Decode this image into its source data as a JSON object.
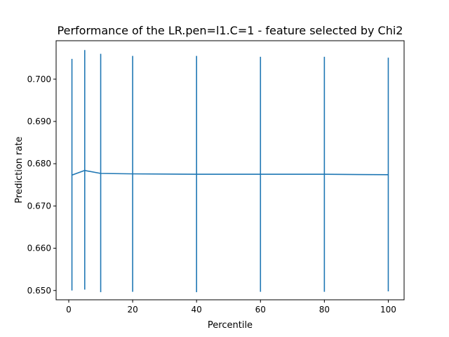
{
  "colors": {
    "series": "#1f77b4",
    "axes": "#000000",
    "background": "#ffffff"
  },
  "chart_data": {
    "type": "line",
    "title": "Performance of the LR.pen=l1.C=1 - feature selected by Chi2",
    "xlabel": "Percentile",
    "ylabel": "Prediction rate",
    "xlim": [
      -3.95,
      104.95
    ],
    "ylim": [
      0.6478,
      0.7091
    ],
    "x_ticks": [
      0,
      20,
      40,
      60,
      80,
      100
    ],
    "x_tick_labels": [
      "0",
      "20",
      "40",
      "60",
      "80",
      "100"
    ],
    "y_ticks": [
      0.65,
      0.66,
      0.67,
      0.68,
      0.69,
      0.7
    ],
    "y_tick_labels": [
      "0.650",
      "0.660",
      "0.670",
      "0.680",
      "0.690",
      "0.700"
    ],
    "grid": false,
    "legend": "none",
    "series": [
      {
        "x": [
          1,
          5,
          10,
          20,
          40,
          60,
          80,
          100
        ],
        "y": [
          0.6773,
          0.6784,
          0.6777,
          0.6776,
          0.6775,
          0.6775,
          0.6775,
          0.6774
        ],
        "error_low": [
          0.65,
          0.6502,
          0.6496,
          0.6497,
          0.6496,
          0.6497,
          0.6497,
          0.6498
        ],
        "error_high": [
          0.7048,
          0.7069,
          0.706,
          0.7055,
          0.7055,
          0.7053,
          0.7053,
          0.7051
        ]
      }
    ]
  }
}
